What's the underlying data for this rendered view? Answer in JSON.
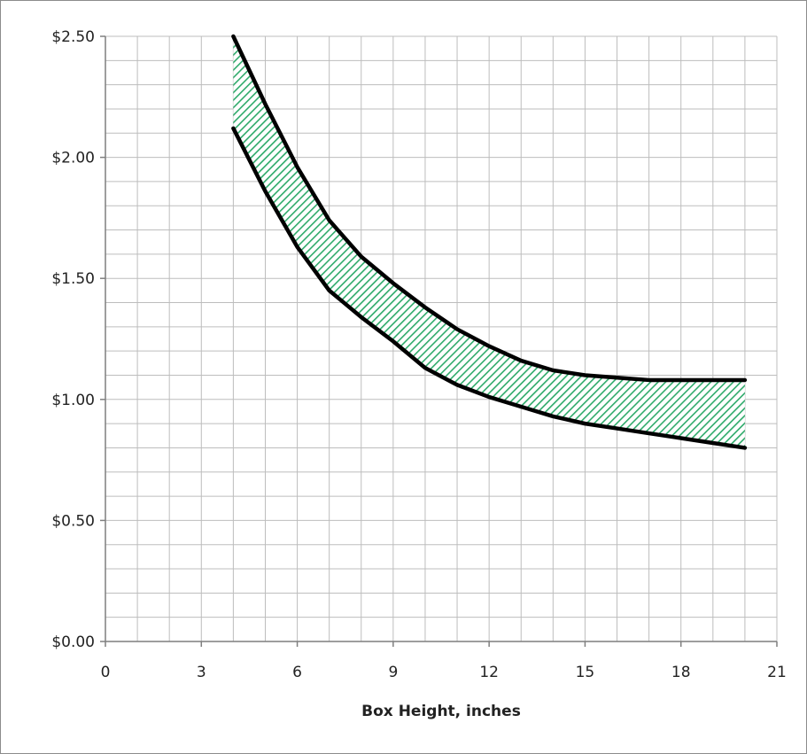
{
  "chart_data": {
    "type": "area",
    "title": "",
    "xlabel": "Box Height, inches",
    "ylabel": "",
    "xlim": [
      0,
      21
    ],
    "ylim": [
      0,
      2.5
    ],
    "x_ticks": [
      0,
      3,
      6,
      9,
      12,
      15,
      18,
      21
    ],
    "x_tick_labels": [
      "0",
      "3",
      "6",
      "9",
      "12",
      "15",
      "18",
      "21"
    ],
    "y_ticks": [
      0,
      0.5,
      1.0,
      1.5,
      2.0,
      2.5
    ],
    "y_tick_labels": [
      "$0.00",
      "$0.50",
      "$1.00",
      "$1.50",
      "$2.00",
      "$2.50"
    ],
    "grid": true,
    "grid_minor_x_step": 1,
    "grid_minor_y_step": 0.1,
    "legend": "none",
    "series": [
      {
        "role": "upper",
        "x": [
          4,
          5,
          6,
          7,
          8,
          9,
          10,
          11,
          12,
          13,
          14,
          15,
          16,
          17,
          18,
          19,
          20
        ],
        "values": [
          2.5,
          2.22,
          1.96,
          1.74,
          1.59,
          1.48,
          1.38,
          1.29,
          1.22,
          1.16,
          1.12,
          1.1,
          1.09,
          1.08,
          1.08,
          1.08,
          1.08
        ]
      },
      {
        "role": "lower",
        "x": [
          4,
          5,
          6,
          7,
          8,
          9,
          10,
          11,
          12,
          13,
          14,
          15,
          16,
          17,
          18,
          19,
          20
        ],
        "values": [
          2.12,
          1.86,
          1.63,
          1.45,
          1.34,
          1.24,
          1.13,
          1.06,
          1.01,
          0.97,
          0.93,
          0.9,
          0.88,
          0.86,
          0.84,
          0.82,
          0.8
        ]
      }
    ],
    "colors": {
      "band_fill": "#2eaa6a",
      "band_background": "#ffffff",
      "line": "#000000",
      "grid": "#bdbdbd",
      "axis": "#7f7f7f"
    }
  }
}
